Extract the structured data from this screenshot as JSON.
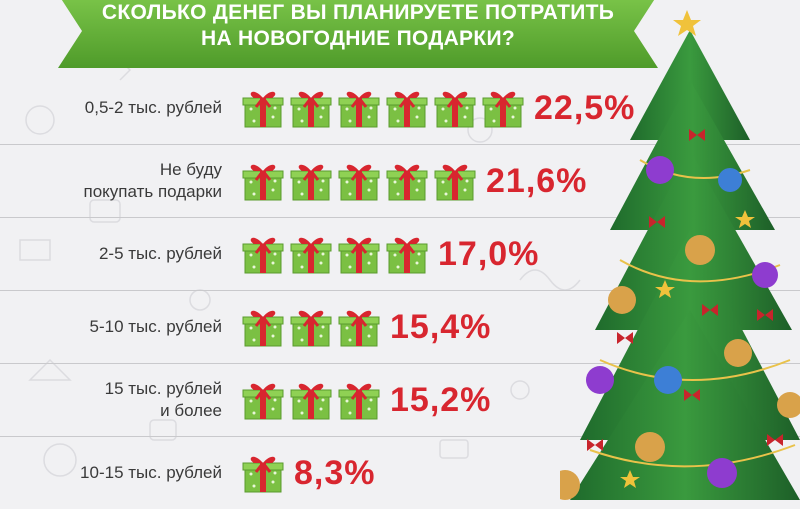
{
  "header": {
    "title_line1": "СКОЛЬКО ДЕНЕГ ВЫ ПЛАНИРУЕТЕ ПОТРАТИТЬ",
    "title_line2": "НА НОВОГОДНИЕ ПОДАРКИ?"
  },
  "colors": {
    "banner": "#5fae35",
    "value": "#d8262f",
    "gift_box": "#7bc043",
    "gift_ribbon": "#d8262f"
  },
  "chart_data": {
    "type": "bar",
    "orientation": "horizontal",
    "unit": "%",
    "categories": [
      "0,5-2 тыс. рублей",
      "Не буду\nпокупать подарки",
      "2-5 тыс. рублей",
      "5-10 тыс. рублей",
      "15 тыс. рублей\nи более",
      "10-15 тыс. рублей"
    ],
    "values": [
      22.5,
      21.6,
      17.0,
      15.4,
      15.2,
      8.3
    ],
    "value_labels": [
      "22,5%",
      "21,6%",
      "17,0%",
      "15,4%",
      "15,2%",
      "8,3%"
    ],
    "gift_counts": [
      6,
      5,
      4,
      3,
      3,
      1
    ]
  }
}
